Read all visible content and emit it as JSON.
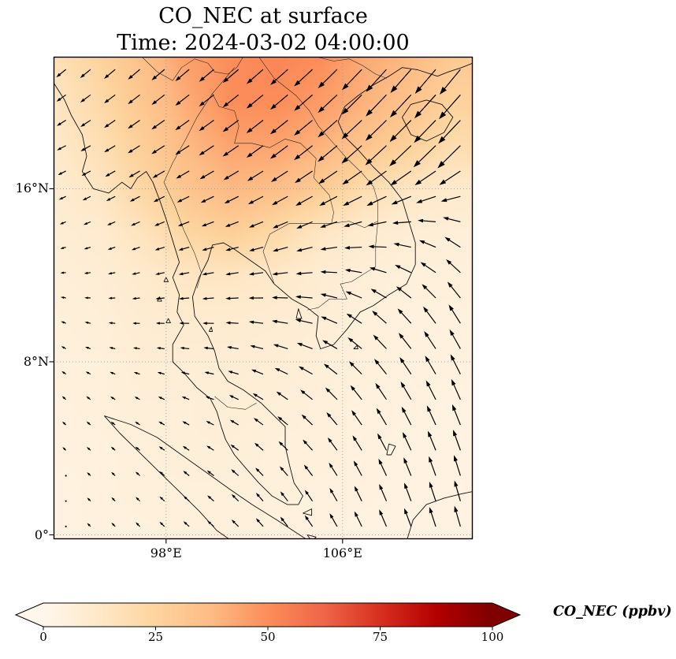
{
  "title": {
    "line1": "CO_NEC at surface",
    "line2": "Time: 2024-03-02 04:00:00"
  },
  "axes": {
    "extent": {
      "lon_min": 92.9,
      "lon_max": 111.9,
      "lat_min": -0.2,
      "lat_max": 22.1
    },
    "lat_ticks": [
      {
        "label": "16°N",
        "value": 16
      },
      {
        "label": "8°N",
        "value": 8
      },
      {
        "label": "0°",
        "value": 0
      }
    ],
    "lon_ticks": [
      {
        "label": "98°E",
        "value": 98
      },
      {
        "label": "106°E",
        "value": 106
      }
    ],
    "grid_on": true
  },
  "colorbar": {
    "label": "CO_NEC (ppbv)",
    "ticks": [
      0,
      25,
      50,
      75,
      100
    ],
    "vmin": 0,
    "vmax": 100,
    "extend": "both",
    "colormap_stops": [
      "#fff7ec",
      "#fee8c8",
      "#fdd49e",
      "#fdbb84",
      "#fc8d59",
      "#ef6548",
      "#d7301f",
      "#b30000",
      "#7f0000"
    ]
  },
  "chart_data": {
    "type": "heatmap",
    "variable": "CO_NEC",
    "level": "surface",
    "time": "2024-03-02 04:00:00",
    "units": "ppbv",
    "title": "CO_NEC at surface",
    "vmin": 0,
    "vmax": 100,
    "extent": {
      "lon_min": 92.9,
      "lon_max": 111.9,
      "lat_min": -0.2,
      "lat_max": 22.1
    },
    "legend_position": "bottom-colorbar",
    "field": {
      "lons": [
        93,
        95,
        97,
        99,
        101,
        103,
        105,
        107,
        109,
        111
      ],
      "lats": [
        22,
        20,
        18,
        16,
        14,
        12,
        10,
        8,
        6,
        4,
        2,
        0
      ],
      "values": [
        [
          18,
          25,
          35,
          45,
          50,
          52,
          50,
          42,
          38,
          30
        ],
        [
          14,
          22,
          32,
          42,
          50,
          50,
          46,
          40,
          34,
          26
        ],
        [
          12,
          18,
          28,
          38,
          44,
          44,
          40,
          33,
          27,
          20
        ],
        [
          10,
          14,
          24,
          33,
          38,
          36,
          30,
          20,
          14,
          11
        ],
        [
          8,
          10,
          16,
          24,
          28,
          22,
          14,
          10,
          8,
          7
        ],
        [
          7,
          8,
          11,
          14,
          14,
          12,
          9,
          7,
          6,
          6
        ],
        [
          6,
          7,
          9,
          10,
          10,
          9,
          8,
          6,
          5,
          5
        ],
        [
          6,
          6,
          8,
          8,
          8,
          8,
          7,
          6,
          5,
          5
        ],
        [
          5,
          6,
          7,
          7,
          8,
          7,
          6,
          5,
          5,
          4
        ],
        [
          5,
          5,
          6,
          7,
          7,
          6,
          6,
          5,
          4,
          4
        ],
        [
          4,
          5,
          6,
          6,
          6,
          6,
          5,
          5,
          4,
          4
        ],
        [
          4,
          5,
          5,
          6,
          6,
          5,
          5,
          4,
          4,
          4
        ]
      ]
    },
    "wind_overlay": {
      "type": "quiver",
      "lons": [
        93,
        96.8,
        100.6,
        104.4,
        108.2,
        112
      ],
      "lats": [
        22,
        18,
        14,
        10,
        6,
        2
      ],
      "u": [
        [
          -1.2,
          -1.6,
          -2.1,
          -2.6,
          -3.0,
          -3.0
        ],
        [
          -1.0,
          -1.6,
          -2.1,
          -2.6,
          -3.1,
          -3.4
        ],
        [
          -0.5,
          -1.0,
          -1.6,
          -2.1,
          -2.6,
          -2.2
        ],
        [
          -0.4,
          -0.8,
          -1.5,
          -2.4,
          -2.0,
          -1.6
        ],
        [
          -0.3,
          -0.5,
          -1.0,
          -1.6,
          -1.5,
          -1.2
        ],
        [
          -0.2,
          -0.4,
          -0.8,
          -1.0,
          -1.0,
          -0.8
        ]
      ],
      "v": [
        [
          -1.0,
          -1.4,
          -1.8,
          -2.4,
          -3.4,
          -3.8
        ],
        [
          -0.5,
          -1.0,
          -1.4,
          -2.0,
          -2.9,
          -3.4
        ],
        [
          -0.2,
          -0.4,
          -0.5,
          -0.8,
          -0.2,
          1.4
        ],
        [
          0.2,
          0.0,
          0.0,
          0.4,
          1.8,
          2.8
        ],
        [
          0.3,
          0.3,
          0.4,
          1.3,
          2.4,
          3.0
        ],
        [
          0.2,
          0.4,
          0.7,
          1.4,
          2.4,
          3.0
        ]
      ]
    }
  },
  "geo": {
    "coastlines": {
      "mainland": [
        [
          92.9,
          20.9
        ],
        [
          93.4,
          20.1
        ],
        [
          93.7,
          19.4
        ],
        [
          94.2,
          18.5
        ],
        [
          94.4,
          17.5
        ],
        [
          94.2,
          16.8
        ],
        [
          94.7,
          16.0
        ],
        [
          95.4,
          15.8
        ],
        [
          96.0,
          16.3
        ],
        [
          96.4,
          16.0
        ],
        [
          96.7,
          16.5
        ],
        [
          97.1,
          16.8
        ],
        [
          97.4,
          16.3
        ],
        [
          97.7,
          15.5
        ],
        [
          98.0,
          14.6
        ],
        [
          98.3,
          13.6
        ],
        [
          98.6,
          12.6
        ],
        [
          98.3,
          11.9
        ],
        [
          98.6,
          11.1
        ],
        [
          98.5,
          10.3
        ],
        [
          98.8,
          9.7
        ],
        [
          98.3,
          8.8
        ],
        [
          98.3,
          8.0
        ],
        [
          98.8,
          7.5
        ],
        [
          99.4,
          6.8
        ],
        [
          100.0,
          6.3
        ],
        [
          100.3,
          5.7
        ],
        [
          100.5,
          5.0
        ],
        [
          100.7,
          4.4
        ],
        [
          101.1,
          3.7
        ],
        [
          101.6,
          3.1
        ],
        [
          102.2,
          2.4
        ],
        [
          102.8,
          1.8
        ],
        [
          103.5,
          1.4
        ],
        [
          104.0,
          1.4
        ],
        [
          104.2,
          1.8
        ],
        [
          103.8,
          2.4
        ],
        [
          103.6,
          3.2
        ],
        [
          103.4,
          4.1
        ],
        [
          103.4,
          5.0
        ],
        [
          102.9,
          5.5
        ],
        [
          102.3,
          6.1
        ],
        [
          101.5,
          6.7
        ],
        [
          100.8,
          7.1
        ],
        [
          100.4,
          7.7
        ],
        [
          100.2,
          8.5
        ],
        [
          99.9,
          9.2
        ],
        [
          99.3,
          10.1
        ],
        [
          99.2,
          11.0
        ],
        [
          99.5,
          11.9
        ],
        [
          99.9,
          12.7
        ],
        [
          100.1,
          13.4
        ],
        [
          100.6,
          13.5
        ],
        [
          101.1,
          13.2
        ],
        [
          101.8,
          12.7
        ],
        [
          102.5,
          12.2
        ],
        [
          102.9,
          11.6
        ],
        [
          103.7,
          10.9
        ],
        [
          104.4,
          10.5
        ],
        [
          104.9,
          10.1
        ],
        [
          104.8,
          9.2
        ],
        [
          105.0,
          8.6
        ],
        [
          105.6,
          8.8
        ],
        [
          106.2,
          9.5
        ],
        [
          106.8,
          10.3
        ],
        [
          107.4,
          10.6
        ],
        [
          108.1,
          11.1
        ],
        [
          108.9,
          11.6
        ],
        [
          109.3,
          12.5
        ],
        [
          109.3,
          13.5
        ],
        [
          109.0,
          14.5
        ],
        [
          108.7,
          15.5
        ],
        [
          108.1,
          16.3
        ],
        [
          107.4,
          17.0
        ],
        [
          106.7,
          17.8
        ],
        [
          106.1,
          18.4
        ],
        [
          105.8,
          19.1
        ],
        [
          106.1,
          19.8
        ],
        [
          106.7,
          20.3
        ],
        [
          107.4,
          20.8
        ],
        [
          108.1,
          21.2
        ],
        [
          108.7,
          21.6
        ],
        [
          109.4,
          21.5
        ],
        [
          110.3,
          21.2
        ],
        [
          110.8,
          21.4
        ],
        [
          111.4,
          21.6
        ],
        [
          111.9,
          21.8
        ]
      ],
      "hainan": [
        [
          108.7,
          19.3
        ],
        [
          109.1,
          19.9
        ],
        [
          109.8,
          20.1
        ],
        [
          110.5,
          19.9
        ],
        [
          111.0,
          19.3
        ],
        [
          110.6,
          18.6
        ],
        [
          109.8,
          18.2
        ],
        [
          109.1,
          18.5
        ],
        [
          108.7,
          19.3
        ]
      ],
      "sumatra_ne": [
        [
          95.2,
          5.5
        ],
        [
          96.4,
          5.1
        ],
        [
          97.6,
          4.5
        ],
        [
          98.7,
          3.7
        ],
        [
          99.8,
          2.9
        ],
        [
          100.9,
          2.1
        ],
        [
          101.9,
          1.4
        ],
        [
          103.0,
          0.7
        ],
        [
          103.9,
          0.1
        ],
        [
          104.5,
          -0.3
        ]
      ],
      "sumatra_sw": [
        [
          95.2,
          5.5
        ],
        [
          95.9,
          4.7
        ],
        [
          96.8,
          3.8
        ],
        [
          97.7,
          2.9
        ],
        [
          98.6,
          2.0
        ],
        [
          99.5,
          1.1
        ],
        [
          100.3,
          0.2
        ],
        [
          101.0,
          -0.3
        ]
      ],
      "borneo_nw": [
        [
          108.9,
          -0.3
        ],
        [
          109.2,
          0.7
        ],
        [
          109.8,
          1.4
        ],
        [
          110.6,
          1.7
        ],
        [
          111.4,
          1.9
        ],
        [
          111.9,
          2.0
        ]
      ],
      "natuna": [
        [
          108.0,
          3.7
        ],
        [
          108.1,
          4.2
        ],
        [
          108.4,
          4.1
        ],
        [
          108.2,
          3.7
        ],
        [
          108.0,
          3.7
        ]
      ],
      "phu_quoc": [
        [
          103.9,
          10.0
        ],
        [
          104.0,
          10.45
        ],
        [
          104.15,
          10.0
        ],
        [
          103.9,
          10.0
        ]
      ],
      "bintan": [
        [
          104.2,
          1.0
        ],
        [
          104.6,
          1.2
        ],
        [
          104.6,
          0.9
        ],
        [
          104.2,
          1.0
        ]
      ],
      "lingga": [
        [
          104.4,
          0.0
        ],
        [
          104.8,
          -0.1
        ],
        [
          104.6,
          -0.3
        ],
        [
          104.4,
          0.0
        ]
      ],
      "samui": [
        [
          99.95,
          9.4
        ],
        [
          100.05,
          9.6
        ],
        [
          100.1,
          9.4
        ],
        [
          99.95,
          9.4
        ]
      ],
      "con_son": [
        [
          106.5,
          8.6
        ],
        [
          106.65,
          8.75
        ],
        [
          106.7,
          8.6
        ],
        [
          106.5,
          8.6
        ]
      ],
      "mergui_1": [
        [
          97.9,
          11.7
        ],
        [
          98.0,
          11.9
        ],
        [
          98.1,
          11.7
        ],
        [
          97.9,
          11.7
        ]
      ],
      "mergui_2": [
        [
          97.6,
          10.8
        ],
        [
          97.7,
          11.0
        ],
        [
          97.8,
          10.8
        ],
        [
          97.6,
          10.8
        ]
      ],
      "mergui_3": [
        [
          98.0,
          9.8
        ],
        [
          98.1,
          10.0
        ],
        [
          98.2,
          9.8
        ],
        [
          98.0,
          9.8
        ]
      ]
    },
    "borders": {
      "myanmar_china_laos": [
        [
          96.9,
          22.1
        ],
        [
          97.6,
          21.4
        ],
        [
          98.3,
          21.0
        ],
        [
          98.7,
          21.6
        ],
        [
          99.3,
          22.0
        ],
        [
          99.9,
          21.8
        ],
        [
          100.2,
          21.4
        ],
        [
          100.8,
          21.3
        ],
        [
          101.2,
          21.6
        ],
        [
          101.5,
          22.1
        ]
      ],
      "mekong_upper": [
        [
          100.1,
          20.4
        ],
        [
          100.6,
          21.0
        ],
        [
          101.1,
          21.6
        ]
      ],
      "myanmar_thailand": [
        [
          100.1,
          20.4
        ],
        [
          99.4,
          19.3
        ],
        [
          98.9,
          18.3
        ],
        [
          98.3,
          17.2
        ],
        [
          97.9,
          16.3
        ],
        [
          98.4,
          15.2
        ],
        [
          98.8,
          14.1
        ],
        [
          99.3,
          13.0
        ],
        [
          99.6,
          12.1
        ],
        [
          99.4,
          11.4
        ]
      ],
      "thailand_laos": [
        [
          100.1,
          20.4
        ],
        [
          100.4,
          19.8
        ],
        [
          101.1,
          19.6
        ],
        [
          101.3,
          18.9
        ],
        [
          101.1,
          18.1
        ],
        [
          101.9,
          18.1
        ],
        [
          102.7,
          17.9
        ],
        [
          103.4,
          18.3
        ],
        [
          104.1,
          18.1
        ],
        [
          104.8,
          17.4
        ],
        [
          104.7,
          16.5
        ],
        [
          105.4,
          15.7
        ],
        [
          105.6,
          14.9
        ],
        [
          105.5,
          14.4
        ]
      ],
      "thailand_cambodia": [
        [
          105.5,
          14.4
        ],
        [
          104.6,
          14.4
        ],
        [
          103.6,
          14.4
        ],
        [
          102.7,
          13.9
        ],
        [
          102.4,
          13.1
        ],
        [
          102.9,
          11.6
        ]
      ],
      "laos_vietnam": [
        [
          102.2,
          22.1
        ],
        [
          102.9,
          21.1
        ],
        [
          103.9,
          20.3
        ],
        [
          104.5,
          19.6
        ],
        [
          104.9,
          18.9
        ],
        [
          105.5,
          18.2
        ],
        [
          106.2,
          17.4
        ],
        [
          106.9,
          16.7
        ],
        [
          107.4,
          16.1
        ],
        [
          107.6,
          15.4
        ],
        [
          107.6,
          14.5
        ]
      ],
      "cambodia_laos": [
        [
          105.5,
          14.4
        ],
        [
          106.3,
          14.5
        ],
        [
          107.0,
          14.2
        ],
        [
          107.6,
          14.5
        ]
      ],
      "cambodia_vietnam": [
        [
          107.6,
          14.5
        ],
        [
          107.5,
          13.4
        ],
        [
          107.5,
          12.4
        ],
        [
          106.4,
          11.7
        ],
        [
          105.9,
          11.6
        ],
        [
          106.2,
          10.9
        ],
        [
          105.4,
          10.9
        ],
        [
          104.9,
          10.5
        ],
        [
          104.4,
          10.4
        ]
      ],
      "vietnam_china": [
        [
          104.8,
          22.1
        ],
        [
          105.6,
          21.9
        ],
        [
          106.3,
          22.0
        ],
        [
          106.9,
          21.7
        ],
        [
          107.5,
          21.3
        ],
        [
          108.0,
          21.1
        ]
      ],
      "malaysia_thailand": [
        [
          100.2,
          6.4
        ],
        [
          100.8,
          5.9
        ],
        [
          101.6,
          5.8
        ],
        [
          102.1,
          6.1
        ]
      ]
    }
  }
}
